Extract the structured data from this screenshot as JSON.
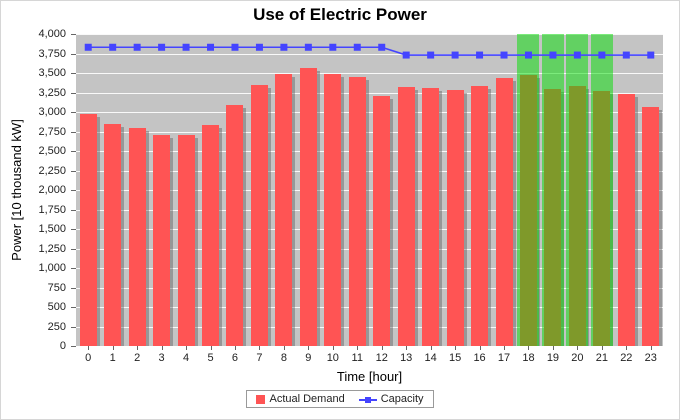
{
  "chart_data": {
    "type": "bar",
    "title": "Use of Electric Power",
    "xlabel": "Time [hour]",
    "ylabel": "Power [10 thousand kW]",
    "ylim": [
      0,
      4000
    ],
    "ytick_step": 250,
    "grid": "horizontal-white-on-gray",
    "legend_position": "bottom",
    "plot_background": "#c4c4c4",
    "categories": [
      0,
      1,
      2,
      3,
      4,
      5,
      6,
      7,
      8,
      9,
      10,
      11,
      12,
      13,
      14,
      15,
      16,
      17,
      18,
      19,
      20,
      21,
      22,
      23
    ],
    "series": [
      {
        "name": "Actual Demand",
        "type": "bar",
        "color": "#ff5454",
        "values": [
          2980,
          2850,
          2790,
          2700,
          2700,
          2830,
          3090,
          3340,
          3490,
          3560,
          3490,
          3450,
          3210,
          3320,
          3310,
          3280,
          3330,
          3440,
          3470,
          3300,
          3330,
          3270,
          3230,
          3060
        ]
      },
      {
        "name": "Capacity",
        "type": "line",
        "color": "#4444ff",
        "values": [
          3830,
          3830,
          3830,
          3830,
          3830,
          3830,
          3830,
          3830,
          3830,
          3830,
          3830,
          3830,
          3830,
          3730,
          3730,
          3730,
          3730,
          3730,
          3730,
          3730,
          3730,
          3730,
          3730,
          3730
        ]
      }
    ],
    "highlight_hours": [
      18,
      19,
      20,
      21
    ],
    "highlight_color": "#00dd00"
  }
}
